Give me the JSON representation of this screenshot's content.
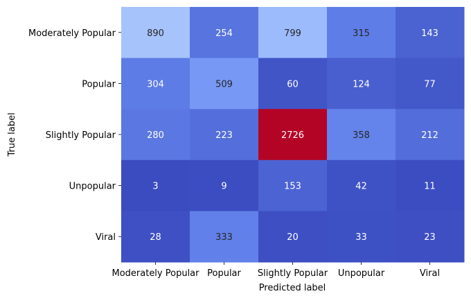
{
  "chart_data": {
    "type": "heatmap",
    "title": "",
    "xlabel": "Predicted label",
    "ylabel": "True label",
    "x_categories": [
      "Moderately Popular",
      "Popular",
      "Slightly Popular",
      "Unpopular",
      "Viral"
    ],
    "y_categories": [
      "Moderately Popular",
      "Popular",
      "Slightly Popular",
      "Unpopular",
      "Viral"
    ],
    "values": [
      [
        890,
        254,
        799,
        315,
        143
      ],
      [
        304,
        509,
        60,
        124,
        77
      ],
      [
        280,
        223,
        2726,
        358,
        212
      ],
      [
        3,
        9,
        153,
        42,
        11
      ],
      [
        28,
        333,
        20,
        33,
        23
      ]
    ],
    "colormap": "coolwarm",
    "vmin": 3,
    "vmax": 2726,
    "colorbar": false,
    "grid": false
  }
}
